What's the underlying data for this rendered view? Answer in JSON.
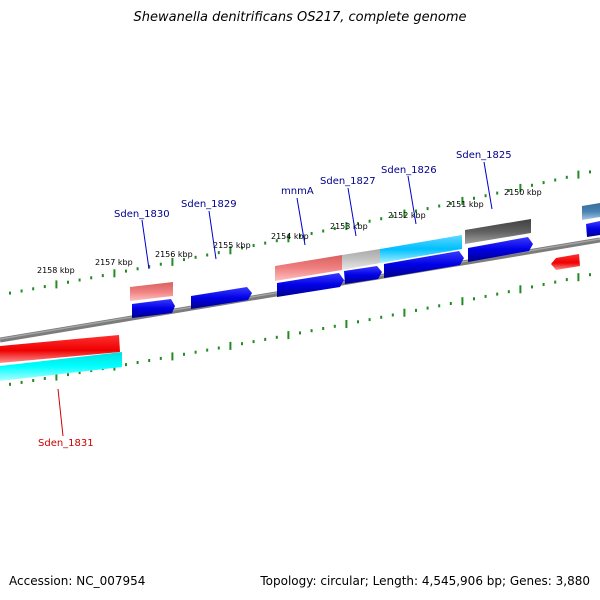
{
  "title": "Shewanella denitrificans OS217, complete genome",
  "footer": {
    "accession": "Accession: NC_007954",
    "summary": "Topology: circular; Length: 4,545,906 bp; Genes: 3,880"
  },
  "colors": {
    "backbone": "#808080",
    "tick": "#228B22",
    "gene_arrow": "#0000EE",
    "label_blue": "#00008B",
    "label_red": "#CC0000"
  },
  "tick_labels": [
    "2158 kbp",
    "2157 kbp",
    "2156 kbp",
    "2155 kbp",
    "2154 kbp",
    "2153 kbp",
    "2152 kbp",
    "2151 kbp",
    "2150 kbp"
  ],
  "gene_labels": [
    {
      "name": "Sden_1831",
      "color": "red"
    },
    {
      "name": "Sden_1830",
      "color": "blue"
    },
    {
      "name": "Sden_1829",
      "color": "blue"
    },
    {
      "name": "mnmA",
      "color": "blue"
    },
    {
      "name": "Sden_1827",
      "color": "blue"
    },
    {
      "name": "Sden_1826",
      "color": "blue"
    },
    {
      "name": "Sden_1825",
      "color": "blue"
    }
  ]
}
